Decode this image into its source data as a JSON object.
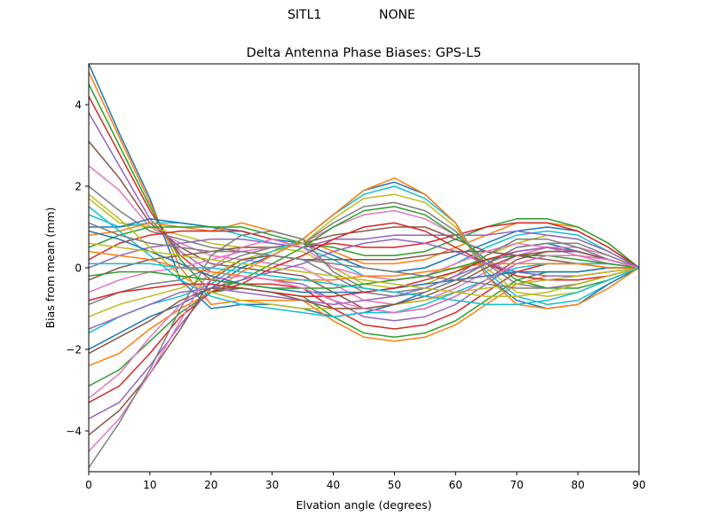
{
  "figure": {
    "suptitle_left": "SITL1",
    "suptitle_right": "NONE"
  },
  "chart_data": {
    "type": "line",
    "title": "Delta Antenna Phase Biases: GPS-L5",
    "xlabel": "Elvation angle (degrees)",
    "ylabel": "Bias from mean (mm)",
    "xlim": [
      0,
      90
    ],
    "ylim": [
      -5,
      5
    ],
    "xticks": [
      0,
      10,
      20,
      30,
      40,
      50,
      60,
      70,
      80,
      90
    ],
    "yticks": [
      -4,
      -2,
      0,
      2,
      4
    ],
    "grid": false,
    "legend": "none",
    "colors": [
      "#1f77b4",
      "#ff7f0e",
      "#2ca02c",
      "#d62728",
      "#9467bd",
      "#8c564b",
      "#e377c2",
      "#7f7f7f",
      "#bcbd22",
      "#17becf"
    ],
    "x": [
      0,
      5,
      10,
      15,
      20,
      25,
      30,
      35,
      40,
      45,
      50,
      55,
      60,
      65,
      70,
      75,
      80,
      85,
      90
    ],
    "series": [
      {
        "values": [
          5.0,
          3.3,
          1.7,
          -0.3,
          -1.0,
          -0.9,
          -0.9,
          -1.0,
          -1.2,
          -1.1,
          -0.9,
          -0.6,
          -0.3,
          0.1,
          0.5,
          0.6,
          0.4,
          0.2,
          0.0
        ]
      },
      {
        "values": [
          4.8,
          3.2,
          1.6,
          0.0,
          -0.9,
          -0.8,
          -0.8,
          -0.8,
          -1.3,
          -1.7,
          -1.8,
          -1.7,
          -1.4,
          -0.9,
          -0.4,
          -0.2,
          -0.2,
          -0.1,
          0.0
        ]
      },
      {
        "values": [
          4.5,
          3.0,
          1.5,
          0.2,
          -0.6,
          -0.5,
          -0.6,
          -0.7,
          -1.2,
          -1.6,
          -1.7,
          -1.6,
          -1.3,
          -0.8,
          -0.3,
          -0.1,
          -0.1,
          0.0,
          0.0
        ]
      },
      {
        "values": [
          4.2,
          2.8,
          1.4,
          0.3,
          -0.3,
          -0.4,
          -0.4,
          -0.5,
          -1.0,
          -1.4,
          -1.5,
          -1.4,
          -1.1,
          -0.6,
          -0.1,
          0.1,
          0.1,
          0.1,
          0.0
        ]
      },
      {
        "values": [
          3.8,
          2.5,
          1.2,
          0.4,
          -0.1,
          -0.2,
          -0.3,
          -0.4,
          -0.8,
          -1.2,
          -1.3,
          -1.2,
          -0.9,
          -0.4,
          0.1,
          0.3,
          0.3,
          0.2,
          0.0
        ]
      },
      {
        "values": [
          3.1,
          2.2,
          1.1,
          0.5,
          0.1,
          0.0,
          -0.1,
          -0.2,
          -0.6,
          -1.0,
          -1.1,
          -1.0,
          -0.7,
          -0.3,
          0.2,
          0.4,
          0.4,
          0.2,
          0.0
        ]
      },
      {
        "values": [
          2.5,
          1.9,
          1.0,
          0.6,
          0.3,
          0.2,
          0.1,
          0.0,
          -0.4,
          -0.8,
          -0.9,
          -0.8,
          -0.5,
          -0.1,
          0.3,
          0.5,
          0.5,
          0.3,
          0.0
        ]
      },
      {
        "values": [
          2.0,
          1.4,
          0.9,
          0.7,
          0.5,
          0.4,
          0.3,
          0.2,
          -0.2,
          -0.6,
          -0.7,
          -0.6,
          -0.3,
          0.1,
          0.5,
          0.6,
          0.6,
          0.3,
          0.0
        ]
      },
      {
        "values": [
          1.7,
          1.1,
          1.0,
          0.8,
          0.6,
          0.5,
          0.5,
          0.4,
          0.0,
          -0.4,
          -0.5,
          -0.4,
          -0.1,
          0.3,
          0.6,
          0.8,
          0.7,
          0.4,
          0.0
        ]
      },
      {
        "values": [
          1.3,
          1.0,
          1.1,
          1.1,
          1.0,
          0.8,
          0.6,
          0.5,
          0.2,
          -0.2,
          -0.3,
          -0.2,
          0.1,
          0.5,
          0.8,
          0.9,
          0.8,
          0.4,
          0.0
        ]
      },
      {
        "values": [
          1.0,
          1.0,
          1.2,
          1.1,
          1.0,
          0.9,
          0.7,
          0.6,
          0.3,
          0.0,
          -0.1,
          0.0,
          0.3,
          0.6,
          0.9,
          1.0,
          0.9,
          0.5,
          0.0
        ]
      },
      {
        "values": [
          0.8,
          0.9,
          1.1,
          1.0,
          0.9,
          1.1,
          0.9,
          0.7,
          0.4,
          0.1,
          0.1,
          0.2,
          0.5,
          0.8,
          1.1,
          1.1,
          1.0,
          0.6,
          0.0
        ]
      },
      {
        "values": [
          0.5,
          0.8,
          1.0,
          1.0,
          1.0,
          1.0,
          0.8,
          0.6,
          0.5,
          0.3,
          0.3,
          0.4,
          0.7,
          1.0,
          1.2,
          1.2,
          1.0,
          0.6,
          0.0
        ]
      },
      {
        "values": [
          0.2,
          0.6,
          0.8,
          0.9,
          0.9,
          0.9,
          0.7,
          0.5,
          0.6,
          0.5,
          0.5,
          0.6,
          0.8,
          1.0,
          1.1,
          1.1,
          0.9,
          0.5,
          0.0
        ]
      },
      {
        "values": [
          0.0,
          0.3,
          0.5,
          0.6,
          0.7,
          0.7,
          0.6,
          0.5,
          0.7,
          0.7,
          0.8,
          0.8,
          0.8,
          0.8,
          0.9,
          0.8,
          0.7,
          0.4,
          0.0
        ]
      },
      {
        "values": [
          -0.3,
          0.0,
          0.2,
          0.3,
          0.4,
          0.5,
          0.5,
          0.6,
          0.8,
          0.9,
          1.0,
          1.0,
          0.7,
          0.4,
          0.3,
          0.3,
          0.3,
          0.2,
          0.0
        ]
      },
      {
        "values": [
          -0.6,
          -0.3,
          -0.1,
          0.0,
          0.2,
          0.4,
          0.5,
          0.6,
          1.0,
          1.3,
          1.4,
          1.2,
          0.8,
          0.2,
          -0.2,
          -0.3,
          -0.2,
          -0.1,
          0.0
        ]
      },
      {
        "values": [
          -0.9,
          -0.6,
          -0.4,
          -0.3,
          0.0,
          0.3,
          0.5,
          0.6,
          1.1,
          1.5,
          1.6,
          1.4,
          0.9,
          0.1,
          -0.4,
          -0.5,
          -0.4,
          -0.2,
          0.0
        ]
      },
      {
        "values": [
          -1.2,
          -0.9,
          -0.7,
          -0.5,
          -0.2,
          0.2,
          0.4,
          0.6,
          1.2,
          1.7,
          1.8,
          1.6,
          1.0,
          0.0,
          -0.6,
          -0.7,
          -0.6,
          -0.3,
          0.0
        ]
      },
      {
        "values": [
          -1.6,
          -1.2,
          -0.9,
          -0.7,
          -0.4,
          0.1,
          0.4,
          0.7,
          1.3,
          1.8,
          2.0,
          1.7,
          1.1,
          -0.1,
          -0.7,
          -0.9,
          -0.8,
          -0.4,
          0.0
        ]
      },
      {
        "values": [
          -2.0,
          -1.6,
          -1.2,
          -0.9,
          -0.5,
          0.0,
          0.3,
          0.7,
          1.3,
          1.9,
          2.1,
          1.8,
          1.1,
          -0.2,
          -0.8,
          -1.0,
          -0.9,
          -0.4,
          0.0
        ]
      },
      {
        "values": [
          -2.4,
          -2.1,
          -1.5,
          -1.0,
          -0.6,
          -0.1,
          0.3,
          0.7,
          1.3,
          1.9,
          2.2,
          1.8,
          1.1,
          -0.2,
          -0.9,
          -1.0,
          -0.9,
          -0.5,
          0.0
        ]
      },
      {
        "values": [
          -2.9,
          -2.5,
          -1.8,
          -1.1,
          -0.6,
          -0.3,
          0.1,
          0.5,
          1.0,
          1.4,
          1.5,
          1.3,
          0.8,
          0.2,
          -0.3,
          -0.5,
          -0.5,
          -0.3,
          0.0
        ]
      },
      {
        "values": [
          -3.3,
          -2.9,
          -2.1,
          -1.2,
          -0.6,
          -0.4,
          0.0,
          0.3,
          0.7,
          1.0,
          1.1,
          0.9,
          0.5,
          0.1,
          -0.2,
          -0.3,
          -0.3,
          -0.2,
          0.0
        ]
      },
      {
        "values": [
          -3.7,
          -3.3,
          -2.4,
          -1.4,
          -0.5,
          -0.3,
          -0.1,
          0.1,
          0.4,
          0.6,
          0.7,
          0.6,
          0.4,
          0.1,
          -0.1,
          -0.2,
          -0.2,
          -0.1,
          0.0
        ]
      },
      {
        "values": [
          -4.1,
          -3.5,
          -2.6,
          -1.5,
          -0.3,
          0.2,
          0.3,
          0.2,
          0.2,
          0.2,
          0.2,
          0.3,
          0.4,
          0.4,
          0.3,
          0.2,
          0.1,
          0.0,
          0.0
        ]
      },
      {
        "values": [
          -4.5,
          -3.7,
          -2.6,
          -1.3,
          0.0,
          0.5,
          0.7,
          0.5,
          0.0,
          -0.2,
          -0.3,
          -0.2,
          0.1,
          0.4,
          0.6,
          0.5,
          0.3,
          0.1,
          0.0
        ]
      },
      {
        "values": [
          -4.9,
          -3.8,
          -2.5,
          -1.0,
          0.3,
          0.8,
          0.9,
          0.7,
          -0.1,
          -0.5,
          -0.6,
          -0.5,
          -0.2,
          0.3,
          0.7,
          0.7,
          0.5,
          0.2,
          0.0
        ]
      },
      {
        "values": [
          1.8,
          1.2,
          0.5,
          -0.2,
          -0.6,
          -0.8,
          -0.9,
          -1.0,
          -1.0,
          -1.0,
          -0.9,
          -0.8,
          -0.6,
          -0.5,
          -0.4,
          -0.3,
          -0.2,
          -0.1,
          0.0
        ]
      },
      {
        "values": [
          1.5,
          0.9,
          0.3,
          -0.3,
          -0.7,
          -0.9,
          -1.0,
          -1.1,
          -1.2,
          -1.1,
          -1.1,
          -0.9,
          -0.6,
          -0.3,
          0.0,
          0.1,
          0.1,
          0.1,
          0.0
        ]
      },
      {
        "values": [
          0.9,
          0.7,
          0.4,
          0.1,
          -0.2,
          -0.4,
          -0.5,
          -0.6,
          -0.6,
          -0.6,
          -0.5,
          -0.4,
          -0.3,
          -0.2,
          -0.1,
          -0.1,
          -0.1,
          0.0,
          0.0
        ]
      },
      {
        "values": [
          0.4,
          0.3,
          0.2,
          0.0,
          -0.1,
          -0.2,
          -0.3,
          -0.3,
          -0.3,
          -0.2,
          -0.2,
          -0.1,
          0.0,
          0.1,
          0.1,
          0.1,
          0.1,
          0.0,
          0.0
        ]
      },
      {
        "values": [
          -0.2,
          -0.1,
          -0.1,
          -0.2,
          -0.3,
          -0.4,
          -0.5,
          -0.5,
          -0.5,
          -0.4,
          -0.3,
          -0.2,
          0.0,
          0.2,
          0.3,
          0.3,
          0.2,
          0.1,
          0.0
        ]
      },
      {
        "values": [
          -0.8,
          -0.6,
          -0.5,
          -0.4,
          -0.4,
          -0.5,
          -0.6,
          -0.7,
          -0.7,
          -0.6,
          -0.5,
          -0.3,
          -0.1,
          0.2,
          0.4,
          0.5,
          0.4,
          0.2,
          0.0
        ]
      },
      {
        "values": [
          -1.5,
          -1.2,
          -0.9,
          -0.6,
          -0.5,
          -0.6,
          -0.7,
          -0.8,
          -0.9,
          -0.8,
          -0.7,
          -0.5,
          -0.2,
          0.1,
          0.4,
          0.5,
          0.4,
          0.2,
          0.0
        ]
      },
      {
        "values": [
          -2.1,
          -1.7,
          -1.3,
          -0.8,
          -0.5,
          -0.5,
          -0.6,
          -0.8,
          -1.0,
          -1.0,
          -0.9,
          -0.7,
          -0.4,
          0.0,
          0.3,
          0.4,
          0.4,
          0.2,
          0.0
        ]
      },
      {
        "values": [
          -3.2,
          -2.6,
          -1.7,
          -0.9,
          -0.3,
          -0.2,
          -0.3,
          -0.5,
          -0.8,
          -1.0,
          -1.1,
          -1.0,
          -0.7,
          -0.3,
          0.1,
          0.3,
          0.3,
          0.2,
          0.0
        ]
      },
      {
        "values": [
          1.1,
          0.8,
          0.6,
          0.5,
          0.4,
          0.4,
          0.3,
          0.2,
          0.1,
          0.0,
          -0.1,
          -0.2,
          -0.3,
          -0.4,
          -0.5,
          -0.5,
          -0.4,
          -0.2,
          0.0
        ]
      },
      {
        "values": [
          0.6,
          0.5,
          0.4,
          0.3,
          0.2,
          0.1,
          0.0,
          -0.1,
          -0.2,
          -0.3,
          -0.4,
          -0.5,
          -0.6,
          -0.7,
          -0.7,
          -0.6,
          -0.4,
          -0.2,
          0.0
        ]
      },
      {
        "values": [
          0.1,
          0.1,
          0.1,
          0.0,
          0.0,
          -0.1,
          -0.2,
          -0.3,
          -0.4,
          -0.5,
          -0.6,
          -0.7,
          -0.8,
          -0.9,
          -0.9,
          -0.8,
          -0.6,
          -0.3,
          0.0
        ]
      }
    ]
  }
}
